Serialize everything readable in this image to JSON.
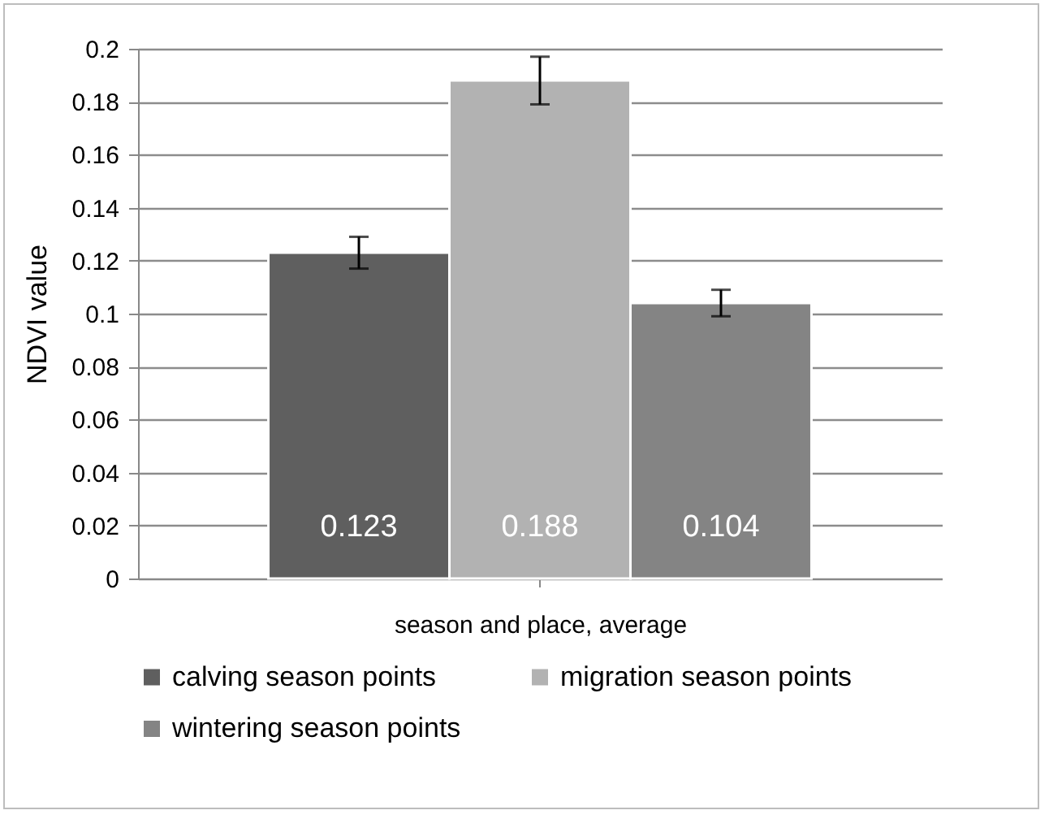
{
  "chart_data": {
    "type": "bar",
    "ylabel": "NDVI value",
    "xlabel": "season and place, average",
    "categories": [
      null
    ],
    "series": [
      {
        "name": "calving season points",
        "color": "#5f5f5f",
        "values": [
          0.123
        ],
        "errors": [
          0.006
        ]
      },
      {
        "name": "migration season points",
        "color": "#b2b2b2",
        "values": [
          0.188
        ],
        "errors": [
          0.009
        ]
      },
      {
        "name": "wintering season points",
        "color": "#848484",
        "values": [
          0.104
        ],
        "errors": [
          0.005
        ]
      }
    ],
    "ylim": [
      0,
      0.2
    ],
    "yticks": [
      0,
      0.02,
      0.04,
      0.06,
      0.08,
      0.1,
      0.12,
      0.14,
      0.16,
      0.18,
      0.2
    ],
    "grid": "y",
    "legend": "bottom",
    "data_labels": true
  }
}
